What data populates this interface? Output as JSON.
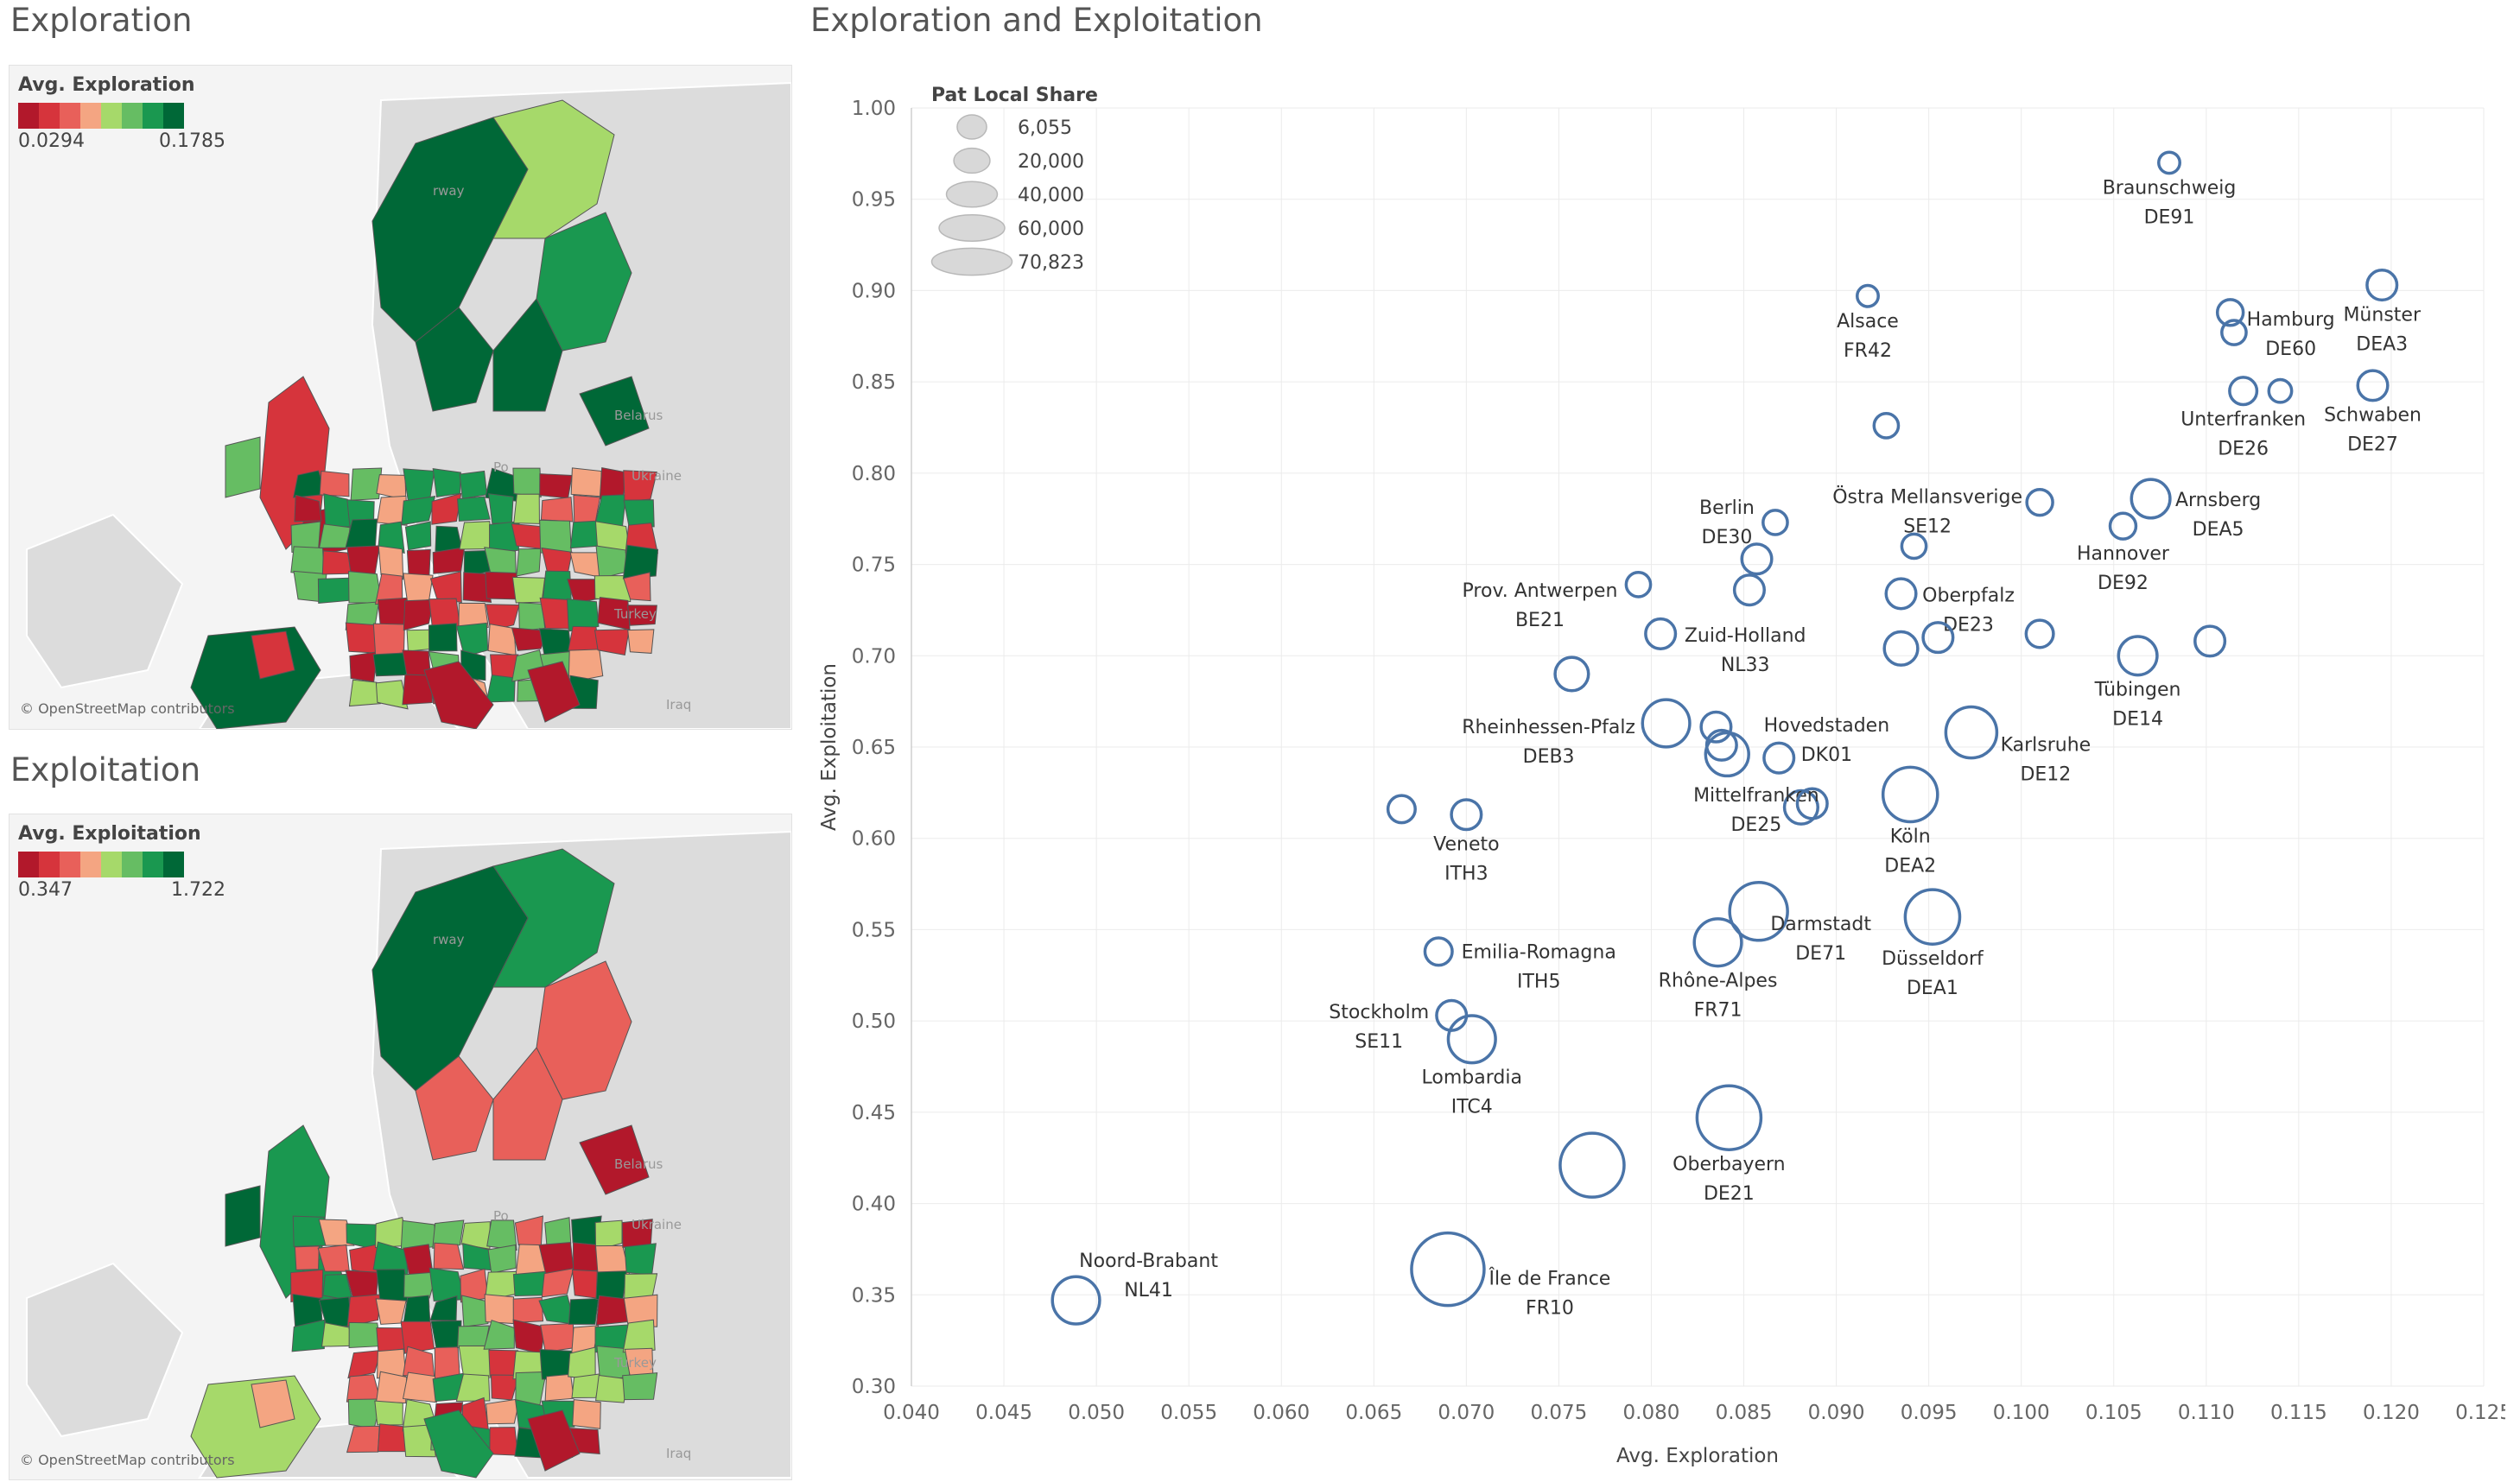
{
  "left_panels": {
    "exploration": {
      "title": "Exploration",
      "legend_title": "Avg. Exploration",
      "min": "0.0294",
      "max": "0.1785",
      "credit": "© OpenStreetMap contributors"
    },
    "exploitation": {
      "title": "Exploitation",
      "legend_title": "Avg. Exploitation",
      "min": "0.347",
      "max": "1.722",
      "credit": "© OpenStreetMap contributors"
    },
    "ramp_colors": [
      "#b2182b",
      "#d6343c",
      "#e8605a",
      "#f4a582",
      "#a6d96a",
      "#66bd63",
      "#1a9850",
      "#006837"
    ],
    "map_labels": [
      "Belarus",
      "Ukraine",
      "Turkey",
      "Iraq",
      "rway",
      "Po"
    ]
  },
  "colors": {
    "mark": "#4a74a8",
    "grid": "#ebebeb",
    "land": "#dcdcdc"
  },
  "chart_data": {
    "type": "scatter",
    "title": "Exploration and Exploitation",
    "xlabel": "Avg. Exploration",
    "ylabel": "Avg. Exploitation",
    "xlim": [
      0.04,
      0.125
    ],
    "ylim": [
      0.3,
      1.0
    ],
    "xticks": [
      "0.040",
      "0.045",
      "0.050",
      "0.055",
      "0.060",
      "0.065",
      "0.070",
      "0.075",
      "0.080",
      "0.085",
      "0.090",
      "0.095",
      "0.100",
      "0.105",
      "0.110",
      "0.115",
      "0.120",
      "0.125"
    ],
    "yticks": [
      "0.30",
      "0.35",
      "0.40",
      "0.45",
      "0.50",
      "0.55",
      "0.60",
      "0.65",
      "0.70",
      "0.75",
      "0.80",
      "0.85",
      "0.90",
      "0.95",
      "1.00"
    ],
    "size_legend": {
      "title": "Pat Local Share",
      "entries": [
        {
          "label": "6,055",
          "value": 6055
        },
        {
          "label": "20,000",
          "value": 20000
        },
        {
          "label": "40,000",
          "value": 40000
        },
        {
          "label": "60,000",
          "value": 60000
        },
        {
          "label": "70,823",
          "value": 70823
        }
      ]
    },
    "points": [
      {
        "name": "Braunschweig",
        "code": "DE91",
        "x": 0.108,
        "y": 0.97,
        "size": 6000,
        "ldx": 0,
        "ldy": 24
      },
      {
        "name": "Alsace",
        "code": "FR42",
        "x": 0.0917,
        "y": 0.897,
        "size": 6000,
        "ldx": 0,
        "ldy": 24
      },
      {
        "name": "Hamburg",
        "code": "DE60",
        "x": 0.1113,
        "y": 0.888,
        "size": 9000,
        "ldx": 70,
        "ldy": 0
      },
      {
        "name": "",
        "code": "",
        "x": 0.1115,
        "y": 0.877,
        "size": 8000
      },
      {
        "name": "Münster",
        "code": "DEA3",
        "x": 0.1195,
        "y": 0.903,
        "size": 12000,
        "ldx": 0,
        "ldy": 24
      },
      {
        "name": "Unterfranken",
        "code": "DE26",
        "x": 0.112,
        "y": 0.845,
        "size": 10000,
        "ldx": 0,
        "ldy": 24
      },
      {
        "name": "",
        "code": "",
        "x": 0.114,
        "y": 0.845,
        "size": 7000
      },
      {
        "name": "Schwaben",
        "code": "DE27",
        "x": 0.119,
        "y": 0.848,
        "size": 12000,
        "ldx": 0,
        "ldy": 24
      },
      {
        "name": "",
        "code": "",
        "x": 0.0927,
        "y": 0.826,
        "size": 8000
      },
      {
        "name": "Östra Mellansverige",
        "code": "SE12",
        "x": 0.101,
        "y": 0.784,
        "size": 9000,
        "ldx": -130,
        "ldy": -14
      },
      {
        "name": "Arnsberg",
        "code": "DEA5",
        "x": 0.107,
        "y": 0.786,
        "size": 20000,
        "ldx": 78,
        "ldy": -14
      },
      {
        "name": "Hannover",
        "code": "DE92",
        "x": 0.1055,
        "y": 0.771,
        "size": 9000,
        "ldx": 0,
        "ldy": 24
      },
      {
        "name": "Berlin",
        "code": "DE30",
        "x": 0.0867,
        "y": 0.773,
        "size": 8000,
        "ldx": -56,
        "ldy": -24
      },
      {
        "name": "",
        "code": "",
        "x": 0.0942,
        "y": 0.76,
        "size": 8000
      },
      {
        "name": "",
        "code": "",
        "x": 0.0857,
        "y": 0.753,
        "size": 12000
      },
      {
        "name": "Oberpfalz",
        "code": "DE23",
        "x": 0.0935,
        "y": 0.734,
        "size": 12000,
        "ldx": 78,
        "ldy": -8
      },
      {
        "name": "Prov. Antwerpen",
        "code": "BE21",
        "x": 0.0793,
        "y": 0.739,
        "size": 8000,
        "ldx": -114,
        "ldy": 0
      },
      {
        "name": "",
        "code": "",
        "x": 0.0853,
        "y": 0.736,
        "size": 12000
      },
      {
        "name": "Zuid-Holland",
        "code": "NL33",
        "x": 0.0805,
        "y": 0.712,
        "size": 12000,
        "ldx": 98,
        "ldy": -8
      },
      {
        "name": "",
        "code": "",
        "x": 0.0935,
        "y": 0.704,
        "size": 15000
      },
      {
        "name": "",
        "code": "",
        "x": 0.0955,
        "y": 0.71,
        "size": 12000
      },
      {
        "name": "",
        "code": "",
        "x": 0.101,
        "y": 0.712,
        "size": 10000
      },
      {
        "name": "Tübingen",
        "code": "DE14",
        "x": 0.1063,
        "y": 0.7,
        "size": 20000,
        "ldx": 0,
        "ldy": 24
      },
      {
        "name": "",
        "code": "",
        "x": 0.1102,
        "y": 0.708,
        "size": 12000
      },
      {
        "name": "",
        "code": "",
        "x": 0.0757,
        "y": 0.69,
        "size": 15000
      },
      {
        "name": "Rheinhessen-Pfalz",
        "code": "DEB3",
        "x": 0.0808,
        "y": 0.663,
        "size": 30000,
        "ldx": -136,
        "ldy": -16
      },
      {
        "name": "Hovedstaden",
        "code": "DK01",
        "x": 0.0835,
        "y": 0.661,
        "size": 12000,
        "ldx": 128,
        "ldy": -12
      },
      {
        "name": "",
        "code": "",
        "x": 0.0838,
        "y": 0.651,
        "size": 12000
      },
      {
        "name": "",
        "code": "",
        "x": 0.0841,
        "y": 0.646,
        "size": 25000
      },
      {
        "name": "",
        "code": "",
        "x": 0.0869,
        "y": 0.644,
        "size": 12000
      },
      {
        "name": "Karlsruhe",
        "code": "DE12",
        "x": 0.0973,
        "y": 0.658,
        "size": 35000,
        "ldx": 86,
        "ldy": -8
      },
      {
        "name": "",
        "code": "",
        "x": 0.0665,
        "y": 0.616,
        "size": 10000
      },
      {
        "name": "Veneto",
        "code": "ITH3",
        "x": 0.07,
        "y": 0.613,
        "size": 12000,
        "ldx": 0,
        "ldy": 24
      },
      {
        "name": "Mittelfranken",
        "code": "DE25",
        "x": 0.0881,
        "y": 0.617,
        "size": 15000,
        "ldx": -52,
        "ldy": -26
      },
      {
        "name": "",
        "code": "",
        "x": 0.0887,
        "y": 0.619,
        "size": 12000
      },
      {
        "name": "Köln",
        "code": "DEA2",
        "x": 0.094,
        "y": 0.624,
        "size": 40000,
        "ldx": 0,
        "ldy": 24
      },
      {
        "name": "Darmstadt",
        "code": "DE71",
        "x": 0.0858,
        "y": 0.56,
        "size": 45000,
        "ldx": 72,
        "ldy": -12
      },
      {
        "name": "Düsseldorf",
        "code": "DEA1",
        "x": 0.0952,
        "y": 0.557,
        "size": 40000,
        "ldx": 0,
        "ldy": 24
      },
      {
        "name": "Rhône-Alpes",
        "code": "FR71",
        "x": 0.0836,
        "y": 0.543,
        "size": 30000,
        "ldx": 0,
        "ldy": 24
      },
      {
        "name": "Emilia-Romagna",
        "code": "ITH5",
        "x": 0.0685,
        "y": 0.538,
        "size": 10000,
        "ldx": 116,
        "ldy": -8
      },
      {
        "name": "Stockholm",
        "code": "SE11",
        "x": 0.0692,
        "y": 0.503,
        "size": 12000,
        "ldx": -84,
        "ldy": -14
      },
      {
        "name": "Lombardia",
        "code": "ITC4",
        "x": 0.0703,
        "y": 0.49,
        "size": 30000,
        "ldx": 0,
        "ldy": 24
      },
      {
        "name": "Oberbayern",
        "code": "DE21",
        "x": 0.0842,
        "y": 0.447,
        "size": 55000,
        "ldx": 0,
        "ldy": 24
      },
      {
        "name": "",
        "code": "",
        "x": 0.0768,
        "y": 0.421,
        "size": 55000
      },
      {
        "name": "Île de France",
        "code": "FR10",
        "x": 0.069,
        "y": 0.364,
        "size": 70823,
        "ldx": 118,
        "ldy": -24
      },
      {
        "name": "Noord-Brabant",
        "code": "NL41",
        "x": 0.0489,
        "y": 0.347,
        "size": 30000,
        "ldx": 84,
        "ldy": -66
      }
    ]
  }
}
